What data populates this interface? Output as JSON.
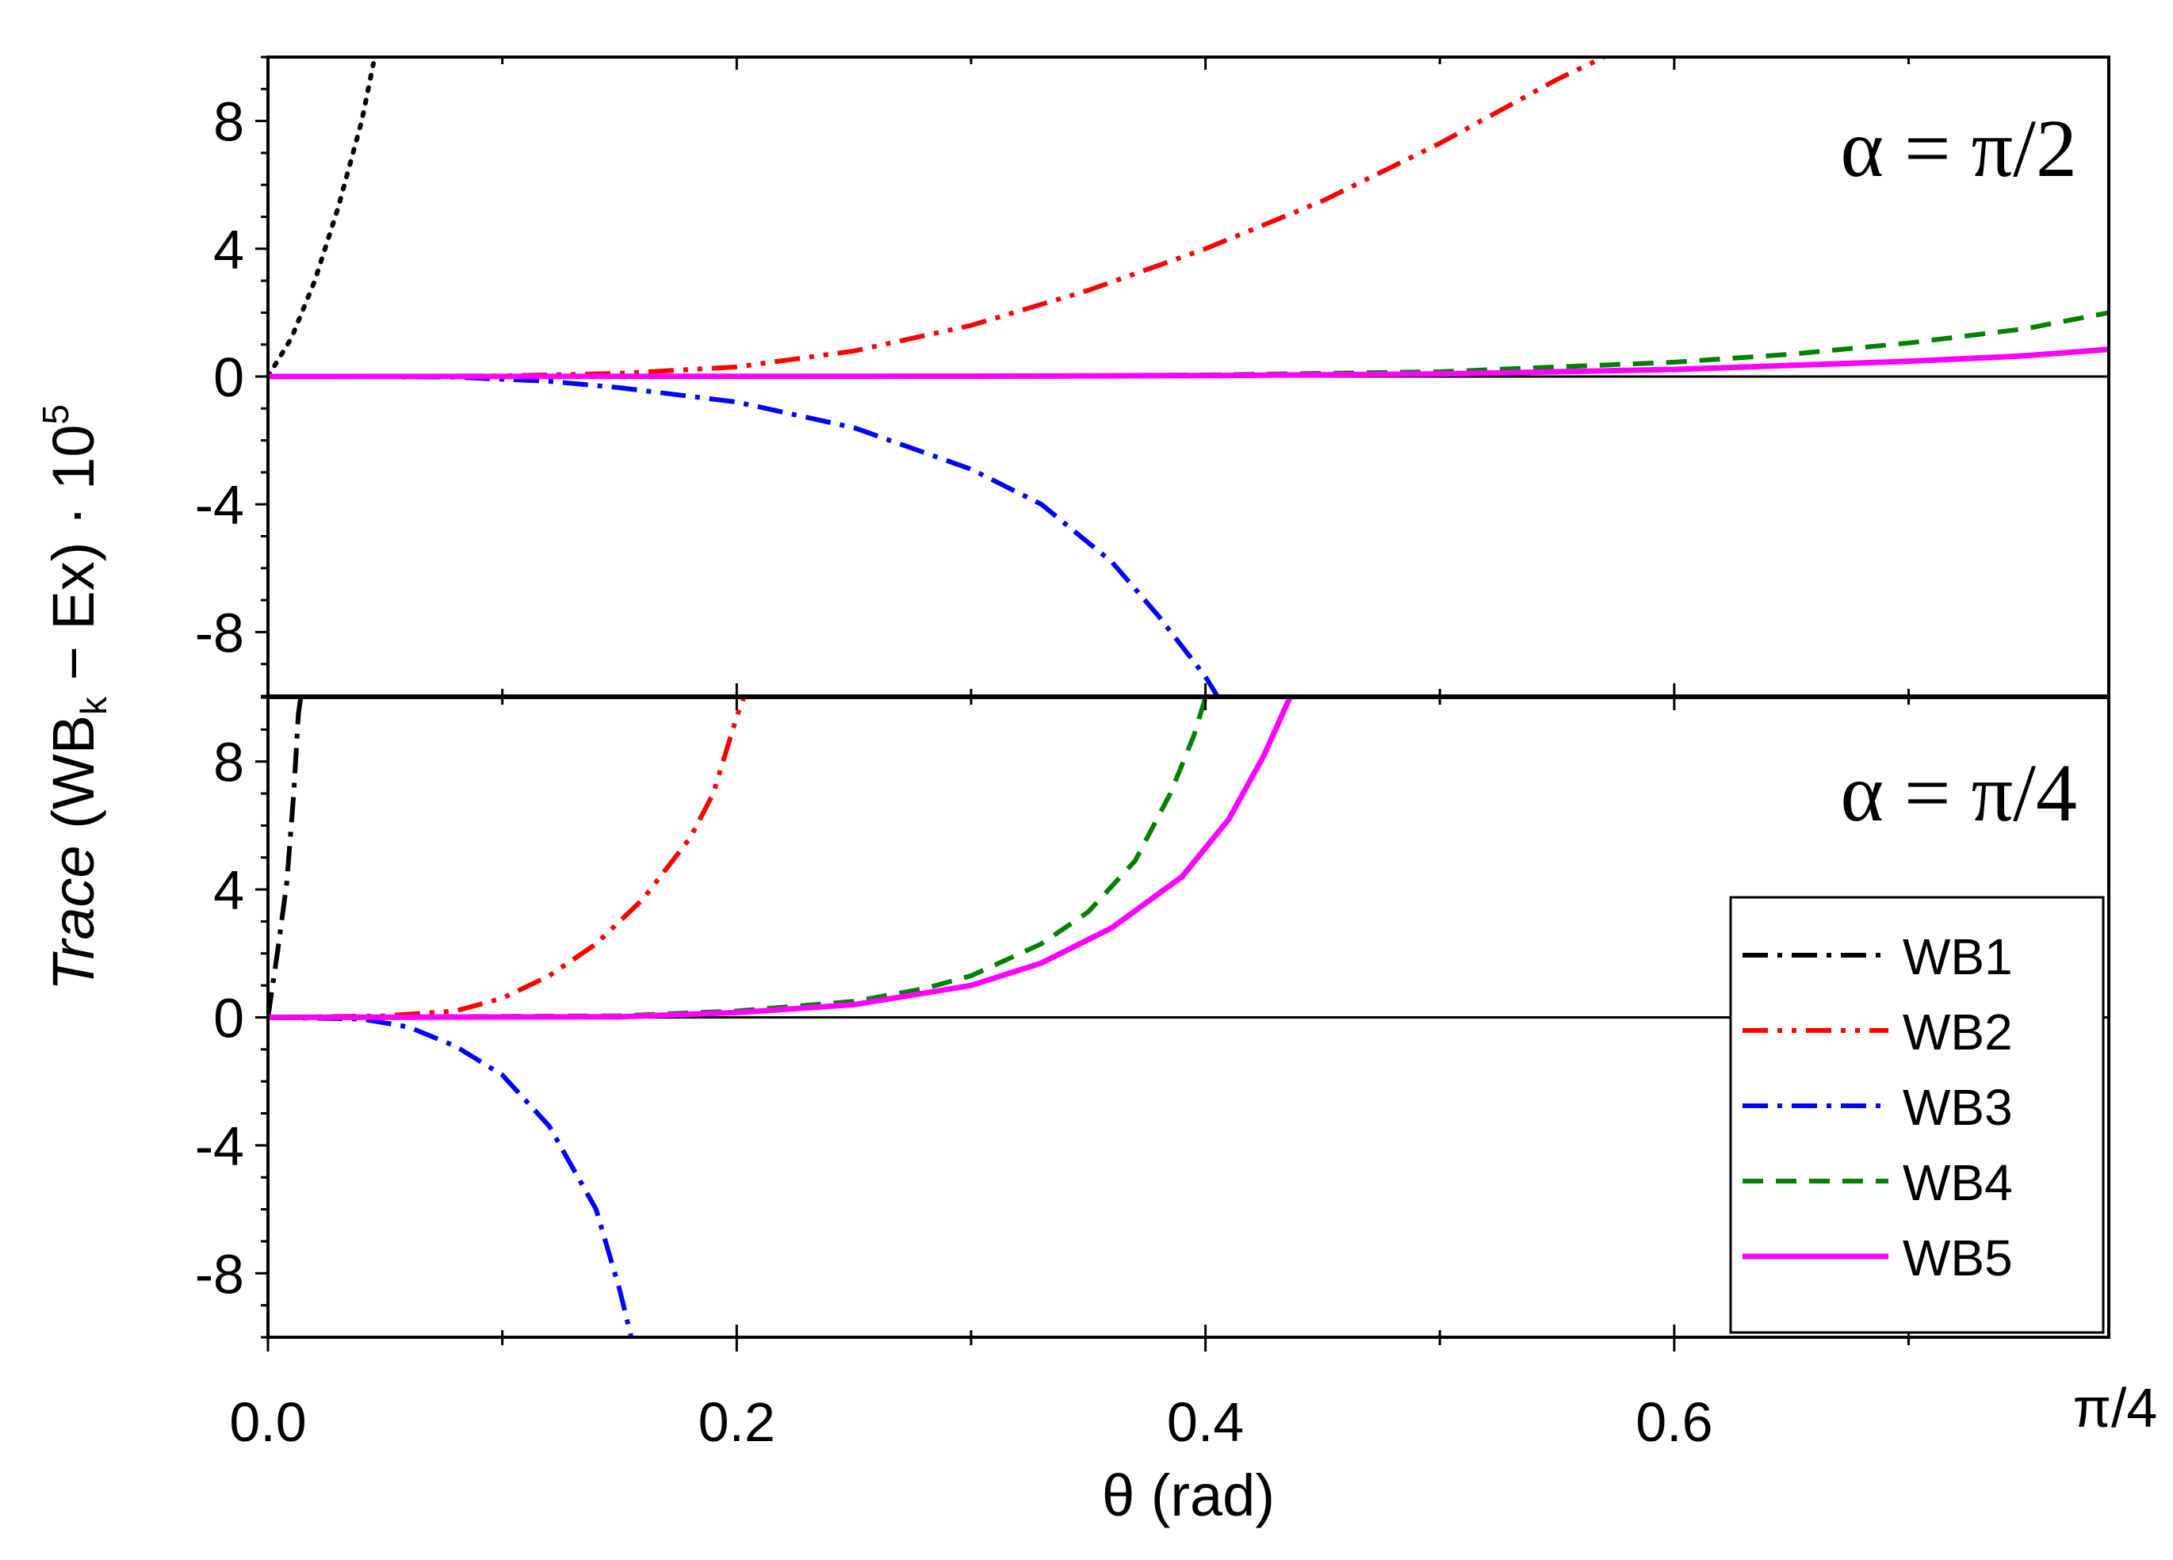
{
  "chart_data": {
    "type": "line",
    "title": "",
    "xlabel": "θ (rad)",
    "ylabel": {
      "italic": "Trace",
      "main": " (WB",
      "sub": "k",
      "mid": " − Ex) · 10",
      "sup": "5"
    },
    "xlim": [
      0,
      0.7854
    ],
    "x_ticks": [
      {
        "value": 0.0,
        "label": "0.0"
      },
      {
        "value": 0.2,
        "label": "0.2"
      },
      {
        "value": 0.4,
        "label": "0.4"
      },
      {
        "value": 0.6,
        "label": "0.6"
      },
      {
        "value": 0.7854,
        "label": "π/4"
      }
    ],
    "ylim": [
      -10,
      10
    ],
    "y_ticks": [
      {
        "value": 8,
        "label": "8"
      },
      {
        "value": 4,
        "label": "4"
      },
      {
        "value": 0,
        "label": "0"
      },
      {
        "value": -4,
        "label": "-4"
      },
      {
        "value": -8,
        "label": "-8"
      }
    ],
    "legend": {
      "position": "lower-right of bottom panel",
      "entries": [
        {
          "name": "WB1",
          "color": "#000000",
          "dash": "dash-dot"
        },
        {
          "name": "WB2",
          "color": "#ff0000",
          "dash": "dash-dot-dot"
        },
        {
          "name": "WB3",
          "color": "#0000ff",
          "dash": "dash-dot"
        },
        {
          "name": "WB4",
          "color": "#007f00",
          "dash": "dashed"
        },
        {
          "name": "WB5",
          "color": "#ff00ff",
          "dash": "solid"
        }
      ]
    },
    "panels": [
      {
        "label": "α = π/2",
        "series": [
          {
            "name": "WB1",
            "style": "dotted",
            "points": [
              [
                0.0,
                0
              ],
              [
                0.01,
                1.2
              ],
              [
                0.02,
                3
              ],
              [
                0.03,
                5.3
              ],
              [
                0.04,
                8
              ],
              [
                0.045,
                9.8
              ]
            ]
          },
          {
            "name": "WB2",
            "points": [
              [
                0.0,
                0
              ],
              [
                0.1,
                0.02
              ],
              [
                0.15,
                0.1
              ],
              [
                0.2,
                0.3
              ],
              [
                0.25,
                0.8
              ],
              [
                0.3,
                1.6
              ],
              [
                0.35,
                2.7
              ],
              [
                0.4,
                4
              ],
              [
                0.45,
                5.5
              ],
              [
                0.5,
                7.3
              ],
              [
                0.55,
                9.3
              ],
              [
                0.57,
                10
              ]
            ]
          },
          {
            "name": "WB3",
            "points": [
              [
                0.0,
                0
              ],
              [
                0.08,
                -0.02
              ],
              [
                0.12,
                -0.15
              ],
              [
                0.15,
                -0.35
              ],
              [
                0.2,
                -0.8
              ],
              [
                0.25,
                -1.6
              ],
              [
                0.3,
                -2.9
              ],
              [
                0.33,
                -4
              ],
              [
                0.36,
                -5.8
              ],
              [
                0.38,
                -7.5
              ],
              [
                0.4,
                -9.4
              ],
              [
                0.405,
                -10
              ]
            ]
          },
          {
            "name": "WB4",
            "points": [
              [
                0.0,
                0
              ],
              [
                0.3,
                0.01
              ],
              [
                0.4,
                0.05
              ],
              [
                0.5,
                0.15
              ],
              [
                0.55,
                0.3
              ],
              [
                0.6,
                0.45
              ],
              [
                0.65,
                0.7
              ],
              [
                0.7,
                1.05
              ],
              [
                0.75,
                1.5
              ],
              [
                0.7854,
                2
              ]
            ]
          },
          {
            "name": "WB5",
            "points": [
              [
                0.0,
                0
              ],
              [
                0.3,
                0.01
              ],
              [
                0.4,
                0.03
              ],
              [
                0.5,
                0.08
              ],
              [
                0.55,
                0.15
              ],
              [
                0.6,
                0.22
              ],
              [
                0.65,
                0.35
              ],
              [
                0.7,
                0.48
              ],
              [
                0.75,
                0.65
              ],
              [
                0.7854,
                0.85
              ]
            ]
          }
        ]
      },
      {
        "label": "α = π/4",
        "series": [
          {
            "name": "WB1",
            "points": [
              [
                0.0,
                0
              ],
              [
                0.004,
                2
              ],
              [
                0.008,
                4.2
              ],
              [
                0.011,
                7
              ],
              [
                0.013,
                9.5
              ],
              [
                0.014,
                10
              ]
            ]
          },
          {
            "name": "WB2",
            "points": [
              [
                0.0,
                0
              ],
              [
                0.05,
                0.05
              ],
              [
                0.08,
                0.2
              ],
              [
                0.1,
                0.6
              ],
              [
                0.12,
                1.3
              ],
              [
                0.14,
                2.3
              ],
              [
                0.16,
                3.7
              ],
              [
                0.18,
                5.6
              ],
              [
                0.19,
                7
              ],
              [
                0.2,
                9.4
              ],
              [
                0.203,
                10
              ]
            ]
          },
          {
            "name": "WB3",
            "points": [
              [
                0.0,
                0
              ],
              [
                0.04,
                -0.05
              ],
              [
                0.06,
                -0.3
              ],
              [
                0.08,
                -0.9
              ],
              [
                0.1,
                -1.8
              ],
              [
                0.12,
                -3.4
              ],
              [
                0.14,
                -6
              ],
              [
                0.15,
                -8.5
              ],
              [
                0.155,
                -10
              ]
            ]
          },
          {
            "name": "WB4",
            "points": [
              [
                0.0,
                0
              ],
              [
                0.15,
                0.05
              ],
              [
                0.2,
                0.2
              ],
              [
                0.25,
                0.5
              ],
              [
                0.28,
                0.9
              ],
              [
                0.3,
                1.3
              ],
              [
                0.33,
                2.3
              ],
              [
                0.35,
                3.3
              ],
              [
                0.37,
                4.9
              ],
              [
                0.385,
                7
              ],
              [
                0.395,
                8.8
              ],
              [
                0.4,
                10
              ]
            ]
          },
          {
            "name": "WB5",
            "points": [
              [
                0.0,
                0
              ],
              [
                0.15,
                0.02
              ],
              [
                0.2,
                0.15
              ],
              [
                0.25,
                0.4
              ],
              [
                0.3,
                1
              ],
              [
                0.33,
                1.7
              ],
              [
                0.36,
                2.8
              ],
              [
                0.39,
                4.4
              ],
              [
                0.41,
                6.2
              ],
              [
                0.425,
                8.2
              ],
              [
                0.436,
                10
              ]
            ]
          }
        ]
      }
    ]
  }
}
